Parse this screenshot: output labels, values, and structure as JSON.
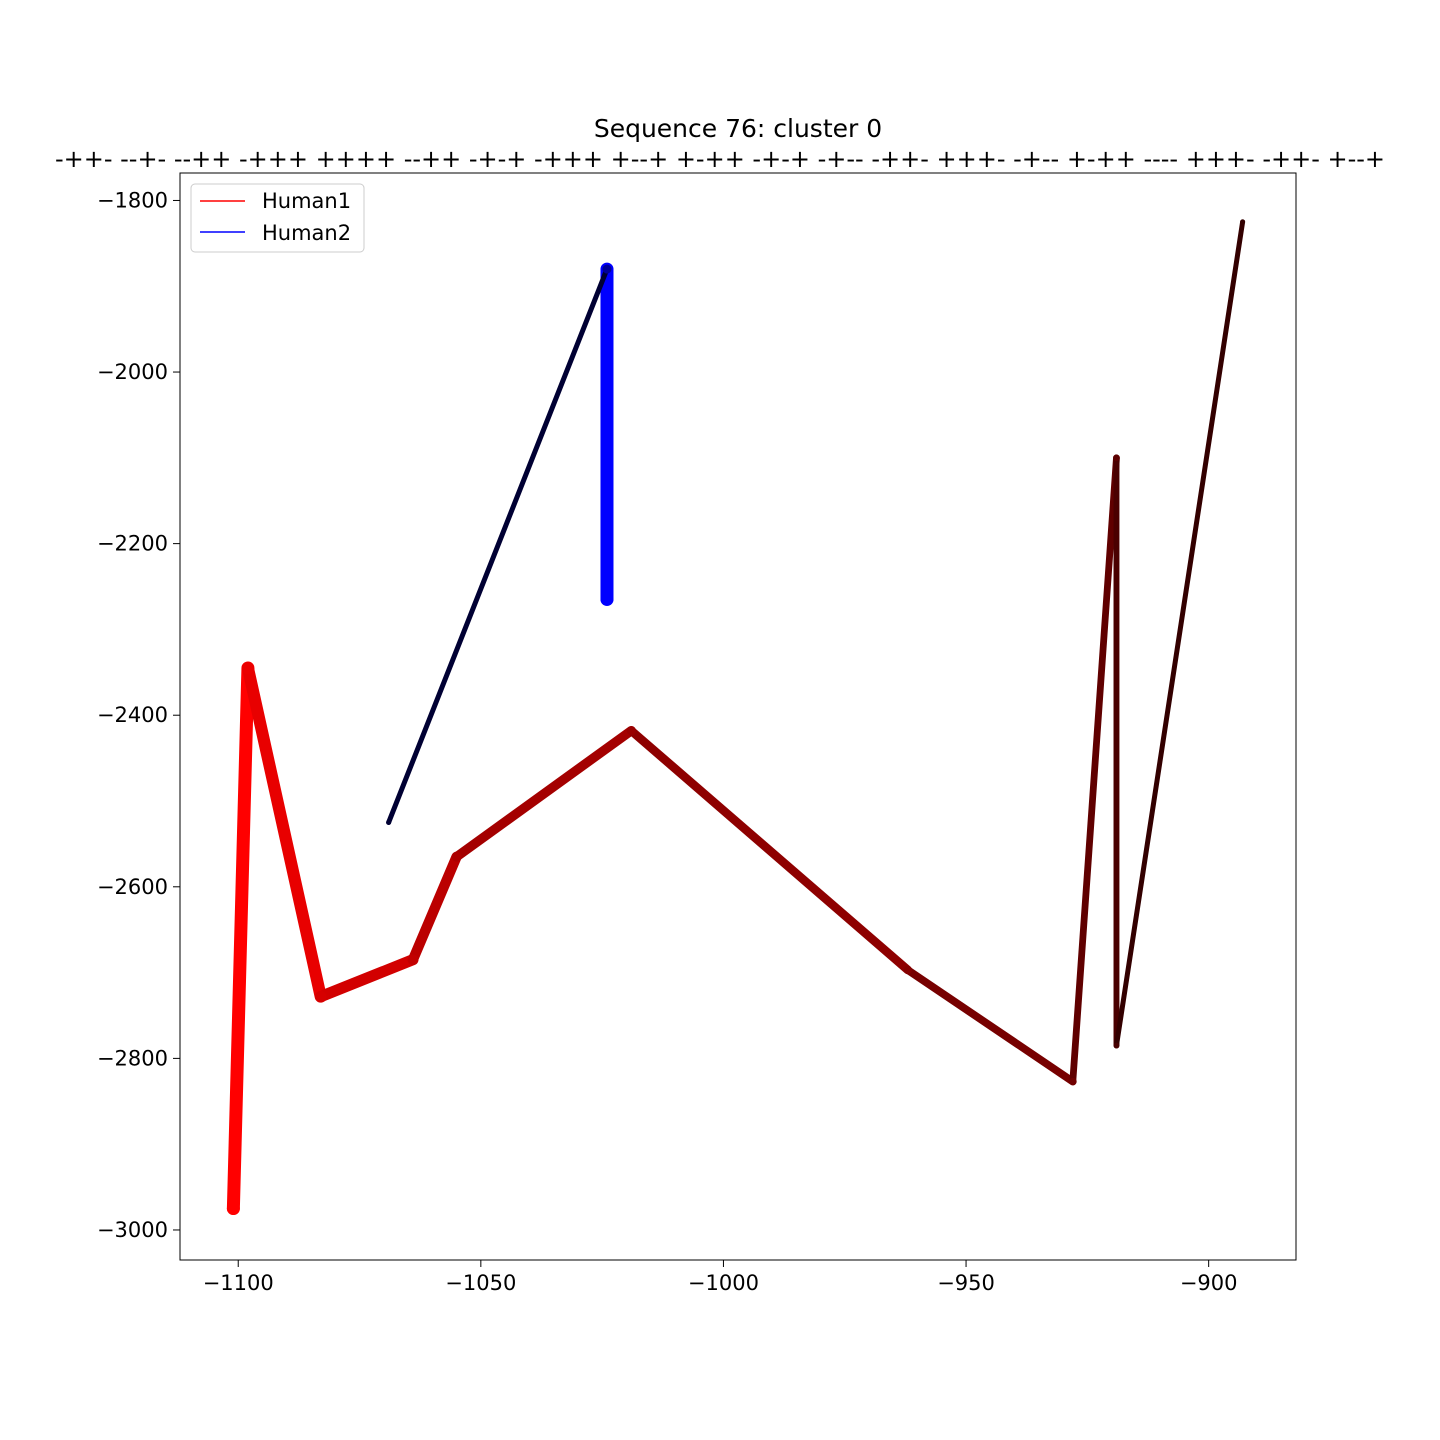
{
  "chart_data": {
    "type": "line",
    "title": "Sequence 76: cluster 0",
    "subtitle": "-++- --+- --++ -+++ ++++ --++ -+-+ -+++ +--+ +-++ -+-+ -+-- -++- +++- -+-- +-++ ---- +++- -++- +--+",
    "xlabel": "",
    "ylabel": "",
    "xlim": [
      -1112,
      -882
    ],
    "ylim": [
      -3035,
      -1768
    ],
    "xticks": [
      -1100,
      -1050,
      -1000,
      -950,
      -900
    ],
    "yticks": [
      -1800,
      -2000,
      -2200,
      -2400,
      -2600,
      -2800,
      -3000
    ],
    "xtick_labels": [
      "−1100",
      "−1050",
      "−1000",
      "−950",
      "−900"
    ],
    "ytick_labels": [
      "−1800",
      "−2000",
      "−2200",
      "−2400",
      "−2600",
      "−2800",
      "−3000"
    ],
    "grid": false,
    "legend_position": "upper-left",
    "series": [
      {
        "name": "Human1",
        "color": "#ff0000",
        "end_color": "#330000",
        "marker_width_start": 13,
        "marker_width_end": 5,
        "x": [
          -1101,
          -1098,
          -1083,
          -1064,
          -1055,
          -1019,
          -962,
          -928,
          -919,
          -919,
          -893
        ],
        "y": [
          -2975,
          -2345,
          -2728,
          -2685,
          -2565,
          -2418,
          -2697,
          -2827,
          -2100,
          -2785,
          -1825
        ]
      },
      {
        "name": "Human2",
        "color": "#0000ff",
        "end_color": "#000033",
        "marker_width_start": 13,
        "marker_width_end": 5,
        "x": [
          -1024,
          -1024,
          -1069
        ],
        "y": [
          -2265,
          -1880,
          -2525
        ]
      }
    ]
  }
}
